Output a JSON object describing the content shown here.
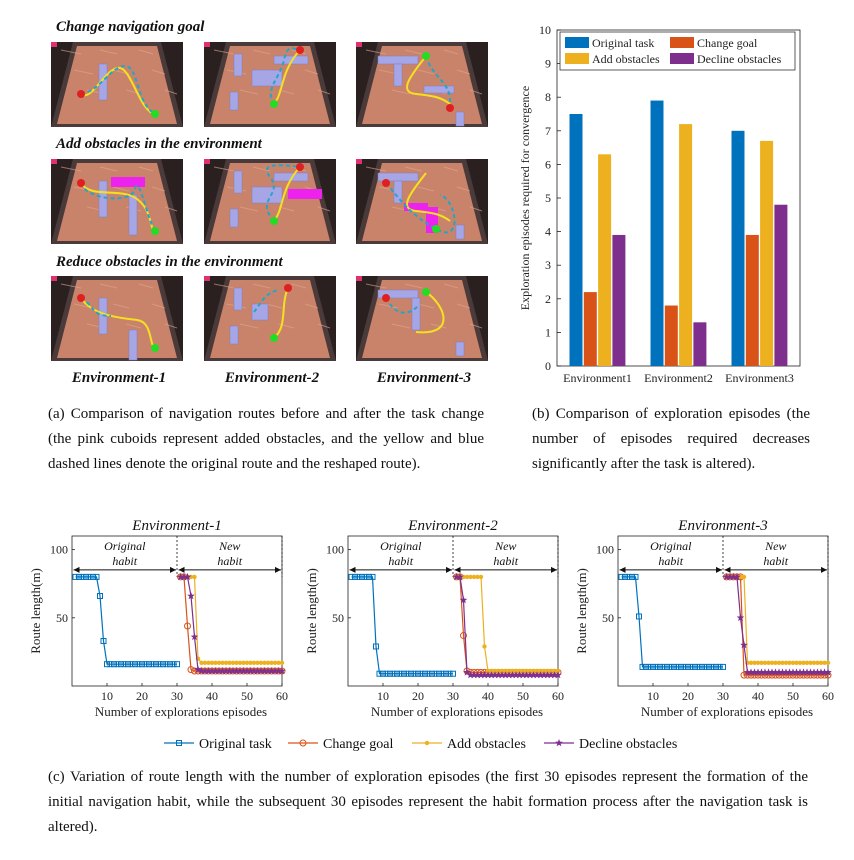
{
  "panel_a": {
    "row_titles": [
      "Change navigation goal",
      "Add obstacles in the environment",
      "Reduce obstacles in the environment"
    ],
    "env_labels": [
      "Environment-1",
      "Environment-2",
      "Environment-3"
    ],
    "caption": "(a) Comparison of navigation routes before and after the task change (the pink cuboids represent added obstacles, and the yellow and blue dashed lines denote the original route and the reshaped route).",
    "colors": {
      "floor": "#c9836a",
      "wall": "#a6a6e6",
      "added_obstacle": "#ee22ee",
      "original_route": "#f5e020",
      "reshaped_route": "#21a6c8",
      "goal": "#22dd22",
      "start": "#e02020"
    }
  },
  "panel_b": {
    "caption": "(b) Comparison of exploration episodes (the number of episodes required decreases significantly after the task is altered).",
    "chart_data": {
      "type": "bar",
      "title": "",
      "xlabel": "",
      "ylabel": "Exploration episodes required for convergence",
      "ylim": [
        0,
        10
      ],
      "yticks": [
        "0",
        "1",
        "2",
        "3",
        "4",
        "5",
        "6",
        "7",
        "8",
        "9",
        "10"
      ],
      "categories": [
        "Environment1",
        "Environment2",
        "Environment3"
      ],
      "series": [
        {
          "name": "Original task",
          "color": "#0072bd",
          "values": [
            7.5,
            7.9,
            7.0
          ]
        },
        {
          "name": "Change goal",
          "color": "#d95319",
          "values": [
            2.2,
            1.8,
            3.9
          ]
        },
        {
          "name": "Add obstacles",
          "color": "#edb120",
          "values": [
            6.3,
            7.2,
            6.7
          ]
        },
        {
          "name": "Decline obstacles",
          "color": "#7e2f8e",
          "values": [
            3.9,
            1.3,
            4.8
          ]
        }
      ],
      "legend_position": "top"
    }
  },
  "panel_c": {
    "caption": "(c) Variation of route length with the number of exploration episodes (the first 30 episodes represent the formation of the initial navigation habit, while the subsequent 30 episodes represent the habit formation process after the navigation task is altered).",
    "legend": [
      "Original task",
      "Change goal",
      "Add obstacles",
      "Decline obstacles"
    ],
    "chart_data": [
      {
        "type": "line",
        "title": "Environment-1",
        "xlabel": "Number of explorations episodes",
        "ylabel": "Route length(m)",
        "xlim": [
          0,
          60
        ],
        "ylim": [
          0,
          110
        ],
        "xticks": [
          "10",
          "20",
          "30",
          "40",
          "50",
          "60"
        ],
        "yticks": [
          "50",
          "100"
        ],
        "annotations": [
          "Original habit",
          "New habit"
        ],
        "series": [
          {
            "name": "Original task",
            "color": "#0072bd",
            "marker": "square",
            "x": [
              1,
              2,
              3,
              4,
              5,
              6,
              7,
              8,
              9,
              10,
              11,
              12,
              13,
              14,
              15,
              16,
              17,
              18,
              19,
              20,
              21,
              22,
              23,
              24,
              25,
              26,
              27,
              28,
              29,
              30
            ],
            "y": [
              80,
              80,
              80,
              80,
              80,
              80,
              80,
              66,
              33,
              16,
              16,
              16,
              16,
              16,
              16,
              16,
              16,
              16,
              16,
              16,
              16,
              16,
              16,
              16,
              16,
              16,
              16,
              16,
              16,
              16
            ]
          },
          {
            "name": "Change goal",
            "color": "#d95319",
            "marker": "circle",
            "x": [
              31,
              32,
              33,
              34,
              35,
              36,
              37,
              38,
              39,
              40,
              41,
              42,
              43,
              44,
              45,
              46,
              47,
              48,
              49,
              50,
              51,
              52,
              53,
              54,
              55,
              56,
              57,
              58,
              59,
              60
            ],
            "y": [
              80,
              80,
              44,
              12,
              11,
              11,
              11,
              11,
              11,
              11,
              11,
              11,
              11,
              11,
              11,
              11,
              11,
              11,
              11,
              11,
              11,
              11,
              11,
              11,
              11,
              11,
              11,
              11,
              11,
              11
            ]
          },
          {
            "name": "Add obstacles",
            "color": "#edb120",
            "marker": "dot",
            "x": [
              31,
              32,
              33,
              34,
              35,
              36,
              37,
              38,
              39,
              40,
              41,
              42,
              43,
              44,
              45,
              46,
              47,
              48,
              49,
              50,
              51,
              52,
              53,
              54,
              55,
              56,
              57,
              58,
              59,
              60
            ],
            "y": [
              80,
              80,
              80,
              80,
              80,
              20,
              17,
              17,
              17,
              17,
              17,
              17,
              17,
              17,
              17,
              17,
              17,
              17,
              17,
              17,
              17,
              17,
              17,
              17,
              17,
              17,
              17,
              17,
              17,
              17
            ]
          },
          {
            "name": "Decline obstacles",
            "color": "#7e2f8e",
            "marker": "star",
            "x": [
              31,
              32,
              33,
              34,
              35,
              36,
              37,
              38,
              39,
              40,
              41,
              42,
              43,
              44,
              45,
              46,
              47,
              48,
              49,
              50,
              51,
              52,
              53,
              54,
              55,
              56,
              57,
              58,
              59,
              60
            ],
            "y": [
              80,
              80,
              80,
              66,
              36,
              12,
              11,
              11,
              11,
              11,
              11,
              11,
              11,
              11,
              11,
              11,
              11,
              11,
              11,
              11,
              11,
              11,
              11,
              11,
              11,
              11,
              11,
              11,
              11,
              11
            ]
          }
        ]
      },
      {
        "type": "line",
        "title": "Environment-2",
        "xlabel": "Number of explorations episodes",
        "ylabel": "Route length(m)",
        "xlim": [
          0,
          60
        ],
        "ylim": [
          0,
          110
        ],
        "xticks": [
          "10",
          "20",
          "30",
          "40",
          "50",
          "60"
        ],
        "yticks": [
          "50",
          "100"
        ],
        "annotations": [
          "Original habit",
          "New habit"
        ],
        "series": [
          {
            "name": "Original task",
            "color": "#0072bd",
            "marker": "square",
            "x": [
              1,
              2,
              3,
              4,
              5,
              6,
              7,
              8,
              9,
              10,
              11,
              12,
              13,
              14,
              15,
              16,
              17,
              18,
              19,
              20,
              21,
              22,
              23,
              24,
              25,
              26,
              27,
              28,
              29,
              30
            ],
            "y": [
              80,
              80,
              80,
              80,
              80,
              80,
              80,
              29,
              9,
              9,
              9,
              9,
              9,
              9,
              9,
              9,
              9,
              9,
              9,
              9,
              9,
              9,
              9,
              9,
              9,
              9,
              9,
              9,
              9,
              9
            ]
          },
          {
            "name": "Change goal",
            "color": "#d95319",
            "marker": "circle",
            "x": [
              31,
              32,
              33,
              34,
              35,
              36,
              37,
              38,
              39,
              40,
              41,
              42,
              43,
              44,
              45,
              46,
              47,
              48,
              49,
              50,
              51,
              52,
              53,
              54,
              55,
              56,
              57,
              58,
              59,
              60
            ],
            "y": [
              80,
              80,
              37,
              11,
              10,
              10,
              10,
              10,
              10,
              10,
              10,
              10,
              10,
              10,
              10,
              10,
              10,
              10,
              10,
              10,
              10,
              10,
              10,
              10,
              10,
              10,
              10,
              10,
              10,
              10
            ]
          },
          {
            "name": "Add obstacles",
            "color": "#edb120",
            "marker": "dot",
            "x": [
              31,
              32,
              33,
              34,
              35,
              36,
              37,
              38,
              39,
              40,
              41,
              42,
              43,
              44,
              45,
              46,
              47,
              48,
              49,
              50,
              51,
              52,
              53,
              54,
              55,
              56,
              57,
              58,
              59,
              60
            ],
            "y": [
              80,
              80,
              80,
              80,
              80,
              80,
              80,
              80,
              29,
              11,
              11,
              11,
              11,
              11,
              11,
              11,
              11,
              11,
              11,
              11,
              11,
              11,
              11,
              11,
              11,
              11,
              11,
              11,
              11,
              11
            ]
          },
          {
            "name": "Decline obstacles",
            "color": "#7e2f8e",
            "marker": "star",
            "x": [
              31,
              32,
              33,
              34,
              35,
              36,
              37,
              38,
              39,
              40,
              41,
              42,
              43,
              44,
              45,
              46,
              47,
              48,
              49,
              50,
              51,
              52,
              53,
              54,
              55,
              56,
              57,
              58,
              59,
              60
            ],
            "y": [
              80,
              80,
              63,
              10,
              8,
              8,
              8,
              8,
              8,
              8,
              8,
              8,
              8,
              8,
              8,
              8,
              8,
              8,
              8,
              8,
              8,
              8,
              8,
              8,
              8,
              8,
              8,
              8,
              8,
              8
            ]
          }
        ]
      },
      {
        "type": "line",
        "title": "Environment-3",
        "xlabel": "Number of explorations episodes",
        "ylabel": "Route length(m)",
        "xlim": [
          0,
          60
        ],
        "ylim": [
          0,
          110
        ],
        "xticks": [
          "10",
          "20",
          "30",
          "40",
          "50",
          "60"
        ],
        "yticks": [
          "50",
          "100"
        ],
        "annotations": [
          "Original habit",
          "New habit"
        ],
        "series": [
          {
            "name": "Original task",
            "color": "#0072bd",
            "marker": "square",
            "x": [
              1,
              2,
              3,
              4,
              5,
              6,
              7,
              8,
              9,
              10,
              11,
              12,
              13,
              14,
              15,
              16,
              17,
              18,
              19,
              20,
              21,
              22,
              23,
              24,
              25,
              26,
              27,
              28,
              29,
              30
            ],
            "y": [
              80,
              80,
              80,
              80,
              80,
              51,
              14,
              14,
              14,
              14,
              14,
              14,
              14,
              14,
              14,
              14,
              14,
              14,
              14,
              14,
              14,
              14,
              14,
              14,
              14,
              14,
              14,
              14,
              14,
              14
            ]
          },
          {
            "name": "Change goal",
            "color": "#d95319",
            "marker": "circle",
            "x": [
              31,
              32,
              33,
              34,
              35,
              36,
              37,
              38,
              39,
              40,
              41,
              42,
              43,
              44,
              45,
              46,
              47,
              48,
              49,
              50,
              51,
              52,
              53,
              54,
              55,
              56,
              57,
              58,
              59,
              60
            ],
            "y": [
              80,
              80,
              80,
              80,
              80,
              8,
              8,
              8,
              8,
              8,
              8,
              8,
              8,
              8,
              8,
              8,
              8,
              8,
              8,
              8,
              8,
              8,
              8,
              8,
              8,
              8,
              8,
              8,
              8,
              8
            ]
          },
          {
            "name": "Add obstacles",
            "color": "#edb120",
            "marker": "dot",
            "x": [
              31,
              32,
              33,
              34,
              35,
              36,
              37,
              38,
              39,
              40,
              41,
              42,
              43,
              44,
              45,
              46,
              47,
              48,
              49,
              50,
              51,
              52,
              53,
              54,
              55,
              56,
              57,
              58,
              59,
              60
            ],
            "y": [
              80,
              80,
              80,
              80,
              80,
              80,
              17,
              17,
              17,
              17,
              17,
              17,
              17,
              17,
              17,
              17,
              17,
              17,
              17,
              17,
              17,
              17,
              17,
              17,
              17,
              17,
              17,
              17,
              17,
              17
            ]
          },
          {
            "name": "Decline obstacles",
            "color": "#7e2f8e",
            "marker": "star",
            "x": [
              31,
              32,
              33,
              34,
              35,
              36,
              37,
              38,
              39,
              40,
              41,
              42,
              43,
              44,
              45,
              46,
              47,
              48,
              49,
              50,
              51,
              52,
              53,
              54,
              55,
              56,
              57,
              58,
              59,
              60
            ],
            "y": [
              80,
              80,
              80,
              80,
              50,
              30,
              10,
              10,
              10,
              10,
              10,
              10,
              10,
              10,
              10,
              10,
              10,
              10,
              10,
              10,
              10,
              10,
              10,
              10,
              10,
              10,
              10,
              10,
              10,
              10
            ]
          }
        ]
      }
    ]
  }
}
